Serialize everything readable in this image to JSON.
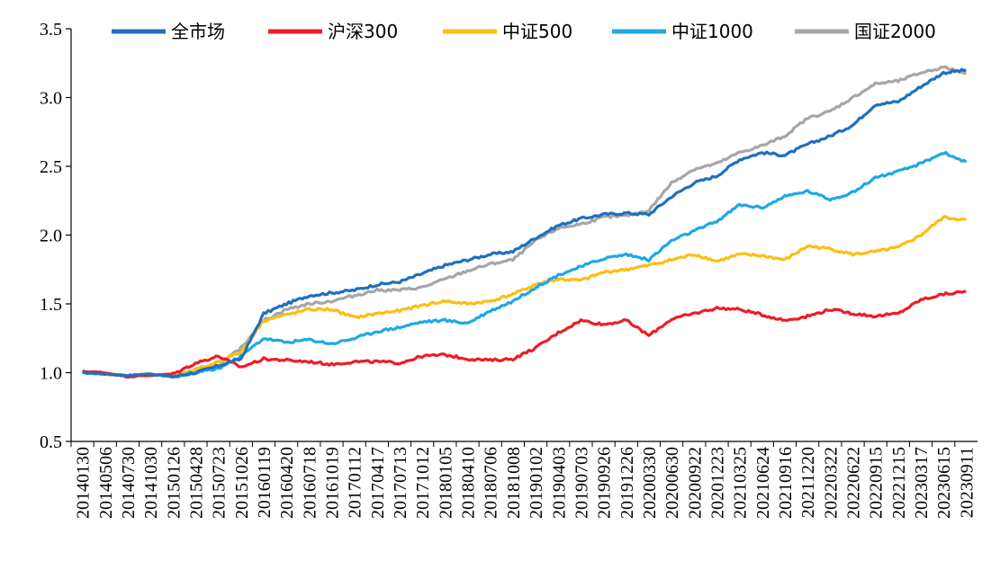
{
  "chart_data": {
    "type": "line",
    "title": "",
    "xlabel": "",
    "ylabel": "",
    "ylim": [
      0.5,
      3.5
    ],
    "yticks": [
      "0.5",
      "1.0",
      "1.5",
      "2.0",
      "2.5",
      "3.0",
      "3.5"
    ],
    "xticks": [
      "20140130",
      "20140506",
      "20140730",
      "20141030",
      "20150126",
      "20150428",
      "20150723",
      "20151026",
      "20160119",
      "20160420",
      "20160718",
      "20161019",
      "20170112",
      "20170417",
      "20170713",
      "20171012",
      "20180105",
      "20180410",
      "20180706",
      "20181008",
      "20190102",
      "20190403",
      "20190703",
      "20190926",
      "20191226",
      "20200330",
      "20200630",
      "20200922",
      "20201223",
      "20210325",
      "20210624",
      "20210916",
      "20211220",
      "20220322",
      "20220622",
      "20220915",
      "20221215",
      "20230317",
      "20230615",
      "20230911"
    ],
    "legend_position": "top",
    "grid": false,
    "series": [
      {
        "name": "全市场",
        "color": "#1F6FC0",
        "values": [
          1.0,
          0.99,
          0.98,
          0.99,
          0.97,
          1.0,
          1.05,
          1.1,
          1.43,
          1.5,
          1.56,
          1.58,
          1.6,
          1.64,
          1.66,
          1.72,
          1.78,
          1.82,
          1.86,
          1.88,
          1.98,
          2.07,
          2.12,
          2.15,
          2.16,
          2.15,
          2.28,
          2.38,
          2.43,
          2.55,
          2.6,
          2.58,
          2.66,
          2.72,
          2.8,
          2.95,
          2.97,
          3.08,
          3.18,
          3.2
        ]
      },
      {
        "name": "沪深300",
        "color": "#EE1C25",
        "values": [
          1.01,
          1.0,
          0.97,
          0.98,
          0.99,
          1.07,
          1.12,
          1.04,
          1.1,
          1.09,
          1.08,
          1.06,
          1.08,
          1.08,
          1.07,
          1.12,
          1.13,
          1.1,
          1.09,
          1.1,
          1.18,
          1.29,
          1.38,
          1.35,
          1.38,
          1.27,
          1.39,
          1.43,
          1.47,
          1.46,
          1.42,
          1.38,
          1.41,
          1.46,
          1.43,
          1.41,
          1.43,
          1.53,
          1.57,
          1.59
        ]
      },
      {
        "name": "中证500",
        "color": "#FDBE10",
        "values": [
          1.0,
          0.99,
          0.98,
          0.99,
          0.97,
          1.02,
          1.08,
          1.15,
          1.38,
          1.42,
          1.46,
          1.46,
          1.4,
          1.43,
          1.45,
          1.49,
          1.52,
          1.5,
          1.52,
          1.57,
          1.64,
          1.68,
          1.67,
          1.73,
          1.75,
          1.78,
          1.82,
          1.86,
          1.81,
          1.86,
          1.85,
          1.82,
          1.92,
          1.9,
          1.86,
          1.88,
          1.91,
          2.0,
          2.13,
          2.11
        ]
      },
      {
        "name": "中证1000",
        "color": "#1EA8E4",
        "values": [
          1.0,
          0.99,
          0.98,
          0.99,
          0.97,
          1.0,
          1.03,
          1.12,
          1.25,
          1.22,
          1.24,
          1.21,
          1.25,
          1.3,
          1.33,
          1.37,
          1.38,
          1.36,
          1.45,
          1.52,
          1.62,
          1.71,
          1.77,
          1.83,
          1.86,
          1.82,
          1.96,
          2.03,
          2.1,
          2.22,
          2.2,
          2.28,
          2.32,
          2.26,
          2.31,
          2.42,
          2.46,
          2.52,
          2.6,
          2.53
        ]
      },
      {
        "name": "国证2000",
        "color": "#A6A6A6",
        "values": [
          1.0,
          0.99,
          0.98,
          0.99,
          0.97,
          1.0,
          1.05,
          1.18,
          1.38,
          1.46,
          1.5,
          1.52,
          1.56,
          1.6,
          1.6,
          1.62,
          1.68,
          1.74,
          1.79,
          1.82,
          1.96,
          2.05,
          2.08,
          2.13,
          2.14,
          2.18,
          2.38,
          2.48,
          2.52,
          2.6,
          2.65,
          2.72,
          2.85,
          2.9,
          3.0,
          3.1,
          3.12,
          3.18,
          3.22,
          3.18
        ]
      }
    ]
  }
}
